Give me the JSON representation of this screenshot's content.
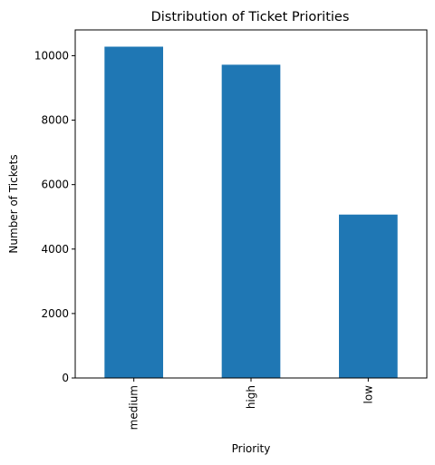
{
  "chart_data": {
    "type": "bar",
    "title": "Distribution of Ticket Priorities",
    "xlabel": "Priority",
    "ylabel": "Number of Tickets",
    "categories": [
      "medium",
      "high",
      "low"
    ],
    "values": [
      10280,
      9720,
      5070
    ],
    "ylim": [
      0,
      10800
    ],
    "yticks": [
      0,
      2000,
      4000,
      6000,
      8000,
      10000
    ],
    "bar_color": "#1f77b4",
    "grid": false,
    "legend": "none"
  }
}
